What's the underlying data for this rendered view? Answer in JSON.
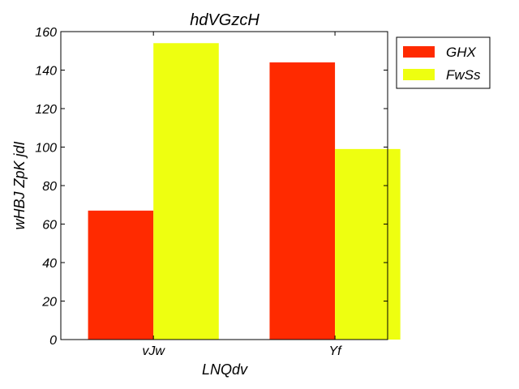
{
  "chart_data": {
    "type": "bar",
    "title": "hdVGzcH",
    "xlabel": "LNQdv",
    "ylabel": "wHBJ ZpK jdI",
    "categories": [
      "vJw",
      "Yf"
    ],
    "series": [
      {
        "name": "GHX",
        "values": [
          67,
          144
        ],
        "color": "#ff2a00"
      },
      {
        "name": "FwSs",
        "values": [
          154,
          99
        ],
        "color": "#eeff10"
      }
    ],
    "ylim": [
      0,
      160
    ],
    "yticks": [
      0,
      20,
      40,
      60,
      80,
      100,
      120,
      140,
      160
    ],
    "grid": false,
    "legend_position": "outside-top-right"
  }
}
